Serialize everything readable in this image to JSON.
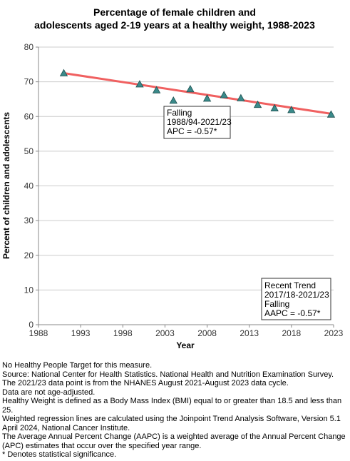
{
  "chart_data": {
    "type": "scatter",
    "title_lines": [
      "Percentage of female children and",
      "adolescents aged 2-19 years at a healthy weight, 1988-2023"
    ],
    "xlabel": "Year",
    "ylabel": "Percent of children and adolescents",
    "xlim": [
      1988,
      2023
    ],
    "ylim": [
      0,
      80
    ],
    "x_ticks": [
      1988,
      1993,
      1998,
      2003,
      2008,
      2013,
      2018,
      2023
    ],
    "y_ticks": [
      0,
      10,
      20,
      30,
      40,
      50,
      60,
      70,
      80
    ],
    "grid": true,
    "series": [
      {
        "marker": "triangle",
        "color": "#3a8a8a",
        "points": [
          {
            "x": 1991,
            "y": 72.5
          },
          {
            "x": 2000,
            "y": 69.3
          },
          {
            "x": 2002,
            "y": 67.6
          },
          {
            "x": 2004,
            "y": 64.6
          },
          {
            "x": 2006,
            "y": 67.9
          },
          {
            "x": 2008,
            "y": 65.2
          },
          {
            "x": 2010,
            "y": 66.2
          },
          {
            "x": 2012,
            "y": 65.3
          },
          {
            "x": 2014,
            "y": 63.4
          },
          {
            "x": 2016,
            "y": 62.4
          },
          {
            "x": 2018,
            "y": 61.9
          },
          {
            "x": 2022.7,
            "y": 60.6
          }
        ]
      }
    ],
    "trend_line": {
      "color": "#f06060",
      "start": {
        "x": 1991,
        "y": 72.5
      },
      "end": {
        "x": 2022.7,
        "y": 60.8
      }
    },
    "annotations": [
      {
        "lines": [
          "Falling",
          "1988/94-2021/23",
          "APC = -0.57*"
        ]
      },
      {
        "lines": [
          "Recent Trend",
          "2017/18-2021/23",
          "Falling",
          "AAPC = -0.57*"
        ]
      }
    ]
  },
  "footnotes": [
    "No Healthy People Target for this measure.",
    "Source: National Center for Health Statistics. National Health and Nutrition Examination Survey.",
    "The 2021/23 data point is from the NHANES August 2021-August 2023 data cycle.",
    "Data are not age-adjusted.",
    "Healthy Weight is defined as a Body Mass Index (BMI) equal to or greater than 18.5 and less than 25.",
    "Weighted regression lines are calculated using the Joinpoint Trend Analysis Software, Version 5.1 April 2024, National Cancer Institute.",
    "The Average Annual Percent Change (AAPC) is a weighted average of the Annual Percent Change (APC) estimates that occur over the specified year range.",
    "* Denotes statistical significance."
  ]
}
